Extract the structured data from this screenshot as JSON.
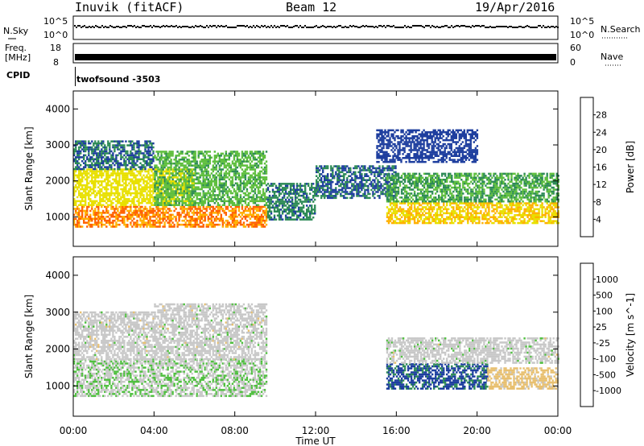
{
  "header": {
    "station": "Inuvik (fitACF)",
    "beam": "Beam 12",
    "date": "19/Apr/2016"
  },
  "top_panels": {
    "nsky": {
      "label": "N.Sky",
      "ticks": [
        "10^5",
        "10^0"
      ],
      "right_ticks": [
        "10^5",
        "10^0"
      ],
      "right_label": "N.Search"
    },
    "freq": {
      "label_line1": "Freq.",
      "label_line2": "[MHz]",
      "ticks": [
        "18",
        "8"
      ],
      "right_ticks": [
        "60",
        "0"
      ],
      "right_label": "Nave"
    },
    "cpid": {
      "label": "CPID",
      "value": "twofsound -3503"
    }
  },
  "colors": {
    "power": [
      "#0000ff",
      "#1f3f9f",
      "#2e8b57",
      "#5fbf3f",
      "#e8e000",
      "#ffb000",
      "#ff6000",
      "#ff0000"
    ],
    "velocity": [
      "#ff0000",
      "#ff4500",
      "#ff8c00",
      "#e8c070",
      "#c8c8c8",
      "#50c040",
      "#2e8b57",
      "#1e3f9f",
      "#0000ff"
    ]
  },
  "chart_data": [
    {
      "type": "heatmap",
      "title": "Power",
      "ylabel": "Slant Range [km]",
      "ylim": [
        180,
        4500
      ],
      "y_ticks": [
        "4000",
        "3000",
        "2000",
        "1000"
      ],
      "colorbar_label": "Power [dB]",
      "colorbar_ticks": [
        "28",
        "24",
        "20",
        "16",
        "12",
        "8",
        "4"
      ],
      "colorbar_range": [
        0,
        32
      ],
      "x_ticks": [
        "00:00",
        "04:00",
        "08:00",
        "12:00",
        "16:00",
        "20:00",
        "00:00"
      ],
      "xlim_hours": [
        0,
        24
      ],
      "regions": [
        {
          "t0": 0.0,
          "t1": 9.6,
          "r0": 700,
          "r1": 1300,
          "v": 24
        },
        {
          "t0": 0.0,
          "t1": 6.0,
          "r0": 1300,
          "r1": 2300,
          "v": 18
        },
        {
          "t0": 0.0,
          "t1": 4.0,
          "r0": 2300,
          "r1": 3100,
          "v": 8
        },
        {
          "t0": 4.0,
          "t1": 9.6,
          "r0": 1300,
          "r1": 2800,
          "v": 13
        },
        {
          "t0": 9.6,
          "t1": 12.0,
          "r0": 900,
          "r1": 1900,
          "v": 9
        },
        {
          "t0": 12.0,
          "t1": 16.0,
          "r0": 1500,
          "r1": 2400,
          "v": 8
        },
        {
          "t0": 15.5,
          "t1": 24.0,
          "r0": 800,
          "r1": 1400,
          "v": 20
        },
        {
          "t0": 15.5,
          "t1": 24.0,
          "r0": 1400,
          "r1": 2200,
          "v": 12
        },
        {
          "t0": 15.0,
          "t1": 20.0,
          "r0": 2500,
          "r1": 3400,
          "v": 6
        }
      ]
    },
    {
      "type": "heatmap",
      "title": "Velocity",
      "ylabel": "Slant Range [km]",
      "xlabel": "Time UT",
      "ylim": [
        180,
        4500
      ],
      "y_ticks": [
        "4000",
        "3000",
        "2000",
        "1000"
      ],
      "colorbar_label": "Velocity [m s^-1]",
      "colorbar_ticks": [
        "1000",
        "500",
        "100",
        "25",
        "-25",
        "-100",
        "-500",
        "-1000"
      ],
      "colorbar_range": [
        -1500,
        1500
      ],
      "x_ticks": [
        "00:00",
        "04:00",
        "08:00",
        "12:00",
        "16:00",
        "20:00",
        "00:00"
      ],
      "xlim_hours": [
        0,
        24
      ],
      "regions": [
        {
          "t0": 0.0,
          "t1": 9.6,
          "r0": 700,
          "r1": 1700,
          "v": 120
        },
        {
          "t0": 0.0,
          "t1": 4.0,
          "r0": 1700,
          "r1": 3000,
          "v": 0
        },
        {
          "t0": 4.0,
          "t1": 9.6,
          "r0": 1700,
          "r1": 3200,
          "v": 5
        },
        {
          "t0": 15.5,
          "t1": 20.5,
          "r0": 900,
          "r1": 1600,
          "v": 900
        },
        {
          "t0": 20.5,
          "t1": 24.0,
          "r0": 900,
          "r1": 1500,
          "v": -300
        },
        {
          "t0": 15.5,
          "t1": 24.0,
          "r0": 1600,
          "r1": 2300,
          "v": 10
        }
      ]
    }
  ]
}
